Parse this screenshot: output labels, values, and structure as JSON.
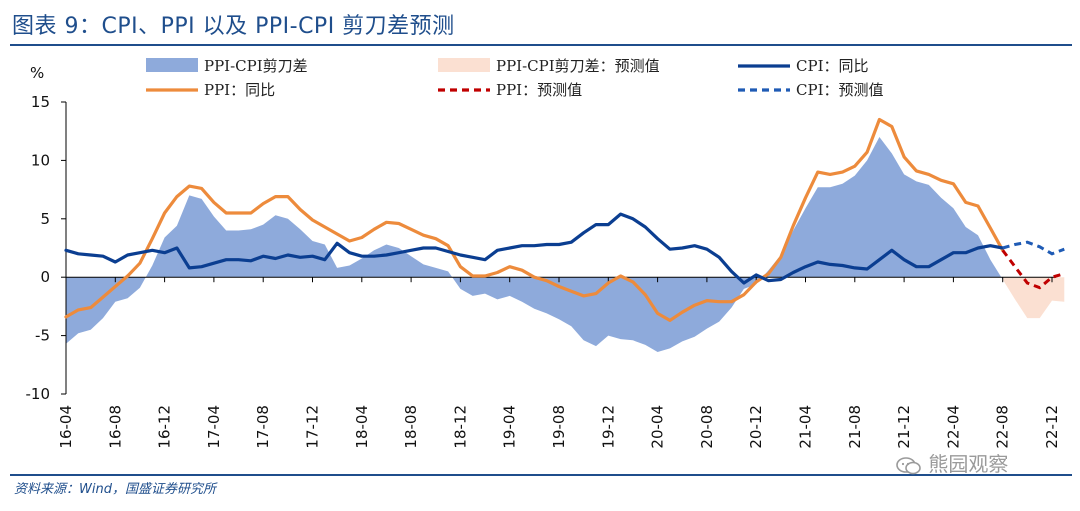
{
  "header": {
    "title": "图表 9：CPI、PPI 以及 PPI-CPI 剪刀差预测"
  },
  "footer": {
    "source": "资料来源：Wind，国盛证券研究所",
    "watermark": "熊园观察"
  },
  "chart_data": {
    "type": "line",
    "unit_label": "%",
    "ylim": [
      -10,
      15
    ],
    "yticks": [
      -10,
      -5,
      0,
      5,
      10,
      15
    ],
    "xtick_labels": [
      "16-04",
      "16-08",
      "16-12",
      "17-04",
      "17-08",
      "17-12",
      "18-04",
      "18-08",
      "18-12",
      "19-04",
      "19-08",
      "19-12",
      "20-04",
      "20-08",
      "20-12",
      "21-04",
      "21-08",
      "21-12",
      "22-04",
      "22-08",
      "22-12"
    ],
    "legend": {
      "spread": "PPI-CPI剪刀差",
      "spread_forecast": "PPI-CPI剪刀差：预测值",
      "cpi": "CPI：同比",
      "ppi": "PPI：同比",
      "ppi_forecast": "PPI：预测值",
      "cpi_forecast": "CPI：预测值"
    },
    "colors": {
      "spread": "#8eaadb",
      "spread_forecast": "#fbe0d2",
      "cpi": "#0b3e91",
      "ppi": "#ed8b3c",
      "ppi_forecast": "#c00000",
      "cpi_forecast": "#1f5bb5"
    },
    "series": [
      {
        "name": "CPI：同比",
        "key": "cpi",
        "start": "16-04",
        "values": [
          2.3,
          2.0,
          1.9,
          1.8,
          1.3,
          1.9,
          2.1,
          2.3,
          2.1,
          2.5,
          0.8,
          0.9,
          1.2,
          1.5,
          1.5,
          1.4,
          1.8,
          1.6,
          1.9,
          1.7,
          1.8,
          1.5,
          2.9,
          2.1,
          1.8,
          1.8,
          1.9,
          2.1,
          2.3,
          2.5,
          2.5,
          2.2,
          1.9,
          1.7,
          1.5,
          2.3,
          2.5,
          2.7,
          2.7,
          2.8,
          2.8,
          3.0,
          3.8,
          4.5,
          4.5,
          5.4,
          5.0,
          4.3,
          3.3,
          2.4,
          2.5,
          2.7,
          2.4,
          1.7,
          0.5,
          -0.5,
          0.2,
          -0.3,
          -0.2,
          0.4,
          0.9,
          1.3,
          1.1,
          1.0,
          0.8,
          0.7,
          1.5,
          2.3,
          1.5,
          0.9,
          0.9,
          1.5,
          2.1,
          2.1,
          2.5,
          2.7,
          2.5
        ]
      },
      {
        "name": "PPI：同比",
        "key": "ppi",
        "start": "16-04",
        "values": [
          -3.4,
          -2.8,
          -2.6,
          -1.7,
          -0.8,
          0.1,
          1.2,
          3.3,
          5.5,
          6.9,
          7.8,
          7.6,
          6.4,
          5.5,
          5.5,
          5.5,
          6.3,
          6.9,
          6.9,
          5.8,
          4.9,
          4.3,
          3.7,
          3.1,
          3.4,
          4.1,
          4.7,
          4.6,
          4.1,
          3.6,
          3.3,
          2.7,
          0.9,
          0.1,
          0.1,
          0.4,
          0.9,
          0.6,
          0.0,
          -0.3,
          -0.8,
          -1.2,
          -1.6,
          -1.4,
          -0.5,
          0.1,
          -0.4,
          -1.5,
          -3.1,
          -3.7,
          -3.0,
          -2.4,
          -2.0,
          -2.1,
          -2.1,
          -1.5,
          -0.4,
          0.3,
          1.7,
          4.4,
          6.8,
          9.0,
          8.8,
          9.0,
          9.5,
          10.7,
          13.5,
          12.9,
          10.3,
          9.1,
          8.8,
          8.3,
          8.0,
          6.4,
          6.1,
          4.2,
          2.3
        ]
      },
      {
        "name": "PPI：预测值",
        "key": "ppi_forecast",
        "start": "22-08",
        "values": [
          2.3,
          0.9,
          -0.5,
          -0.9,
          0.0,
          0.3
        ]
      },
      {
        "name": "CPI：预测值",
        "key": "cpi_forecast",
        "start": "22-08",
        "values": [
          2.5,
          2.8,
          3.0,
          2.6,
          2.0,
          2.4
        ]
      },
      {
        "name": "PPI-CPI剪刀差",
        "key": "spread",
        "start": "16-04",
        "derived": "PPI - CPI"
      },
      {
        "name": "PPI-CPI剪刀差：预测值",
        "key": "spread_forecast",
        "start": "22-08",
        "derived": "PPI预测值 - CPI预测值"
      }
    ]
  }
}
